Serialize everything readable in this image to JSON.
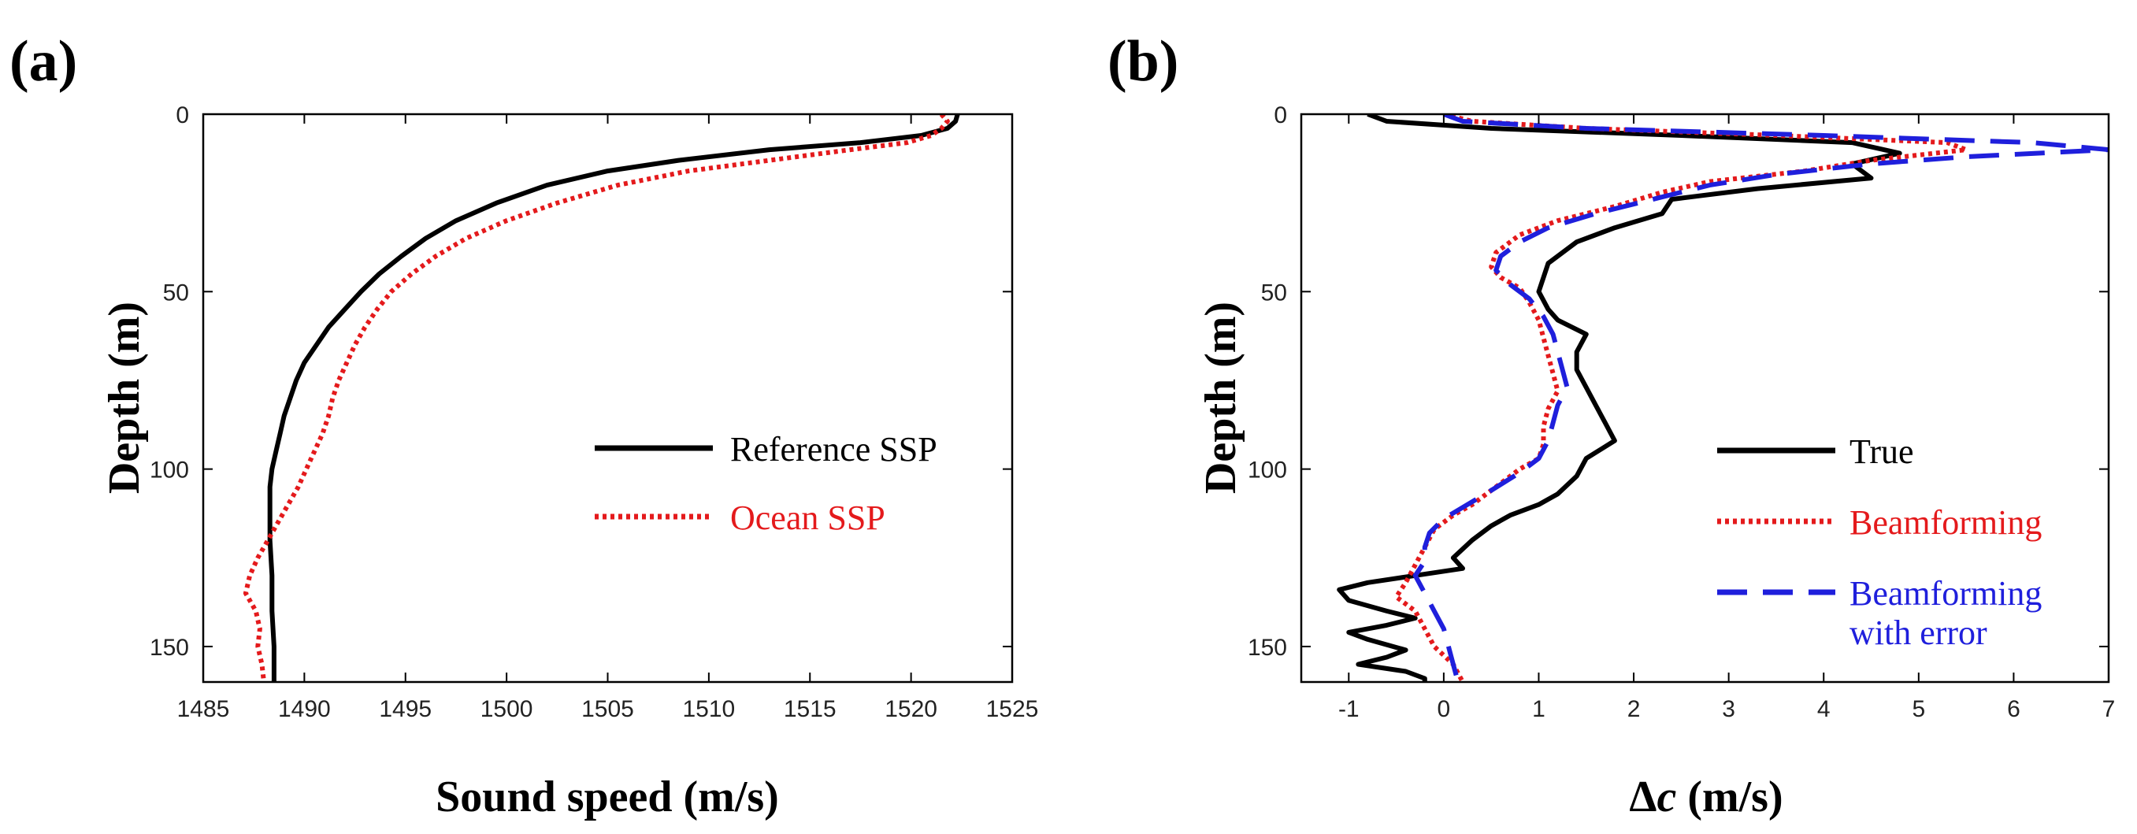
{
  "chart_data": [
    {
      "panel": "(a)",
      "type": "line",
      "xlabel": "Sound speed (m/s)",
      "ylabel": "Depth (m)",
      "xlim": [
        1485,
        1525
      ],
      "ylim": [
        0,
        160
      ],
      "y_inverted": true,
      "xticks": [
        "1485",
        "1490",
        "1495",
        "1500",
        "1505",
        "1510",
        "1515",
        "1520",
        "1525"
      ],
      "yticks": [
        "0",
        "50",
        "100",
        "150"
      ],
      "legend_position": "center-right",
      "series": [
        {
          "name": "Reference SSP",
          "color": "#000000",
          "style": "solid",
          "points": [
            [
              1522.3,
              0
            ],
            [
              1522.2,
              2
            ],
            [
              1521.8,
              4
            ],
            [
              1520.5,
              6
            ],
            [
              1517.5,
              8
            ],
            [
              1513,
              10
            ],
            [
              1508.5,
              13
            ],
            [
              1505,
              16
            ],
            [
              1502,
              20
            ],
            [
              1499.5,
              25
            ],
            [
              1497.5,
              30
            ],
            [
              1496,
              35
            ],
            [
              1494.8,
              40
            ],
            [
              1493.7,
              45
            ],
            [
              1492.8,
              50
            ],
            [
              1492,
              55
            ],
            [
              1491.2,
              60
            ],
            [
              1490.6,
              65
            ],
            [
              1490,
              70
            ],
            [
              1489.6,
              75
            ],
            [
              1489.3,
              80
            ],
            [
              1489,
              85
            ],
            [
              1488.8,
              90
            ],
            [
              1488.6,
              95
            ],
            [
              1488.4,
              100
            ],
            [
              1488.3,
              105
            ],
            [
              1488.3,
              110
            ],
            [
              1488.3,
              120
            ],
            [
              1488.4,
              130
            ],
            [
              1488.4,
              140
            ],
            [
              1488.5,
              150
            ],
            [
              1488.5,
              160
            ]
          ]
        },
        {
          "name": "Ocean SSP",
          "color": "#e41a1c",
          "style": "dotted",
          "points": [
            [
              1521.5,
              0
            ],
            [
              1521.8,
              2
            ],
            [
              1521.5,
              4
            ],
            [
              1521,
              6
            ],
            [
              1519.8,
              8
            ],
            [
              1517,
              10
            ],
            [
              1513,
              13
            ],
            [
              1509,
              16
            ],
            [
              1505.5,
              20
            ],
            [
              1502.5,
              25
            ],
            [
              1500,
              30
            ],
            [
              1498,
              35
            ],
            [
              1496.5,
              40
            ],
            [
              1495.3,
              45
            ],
            [
              1494.3,
              50
            ],
            [
              1493.6,
              55
            ],
            [
              1493,
              60
            ],
            [
              1492.5,
              65
            ],
            [
              1492.1,
              70
            ],
            [
              1491.7,
              75
            ],
            [
              1491.4,
              80
            ],
            [
              1491.2,
              85
            ],
            [
              1490.9,
              90
            ],
            [
              1490.5,
              95
            ],
            [
              1490.1,
              100
            ],
            [
              1489.7,
              105
            ],
            [
              1489.2,
              110
            ],
            [
              1488.7,
              115
            ],
            [
              1488.2,
              120
            ],
            [
              1487.7,
              125
            ],
            [
              1487.3,
              130
            ],
            [
              1487.1,
              135
            ],
            [
              1487.6,
              140
            ],
            [
              1487.8,
              145
            ],
            [
              1487.7,
              150
            ],
            [
              1487.9,
              155
            ],
            [
              1488,
              160
            ]
          ]
        }
      ]
    },
    {
      "panel": "(b)",
      "type": "line",
      "xlabel_symbol": "Δ",
      "xlabel_var": "c",
      "xlabel_units": " (m/s)",
      "ylabel": "Depth (m)",
      "xlim": [
        -1.5,
        7
      ],
      "ylim": [
        0,
        160
      ],
      "y_inverted": true,
      "xticks": [
        "-1",
        "0",
        "1",
        "2",
        "3",
        "4",
        "5",
        "6",
        "7"
      ],
      "xtick_values": [
        -1,
        0,
        1,
        2,
        3,
        4,
        5,
        6,
        7
      ],
      "yticks": [
        "0",
        "50",
        "100",
        "150"
      ],
      "legend_position": "lower-right",
      "series": [
        {
          "name": "True",
          "color": "#000000",
          "style": "solid",
          "points": [
            [
              -0.8,
              0
            ],
            [
              -0.6,
              2
            ],
            [
              0.5,
              4
            ],
            [
              2.5,
              6
            ],
            [
              4.3,
              8
            ],
            [
              4.8,
              11
            ],
            [
              4.3,
              14
            ],
            [
              4.5,
              18
            ],
            [
              3.3,
              21
            ],
            [
              2.4,
              24
            ],
            [
              2.3,
              28
            ],
            [
              1.8,
              32
            ],
            [
              1.4,
              36
            ],
            [
              1.1,
              42
            ],
            [
              1,
              50
            ],
            [
              1.1,
              55
            ],
            [
              1.2,
              58
            ],
            [
              1.5,
              62
            ],
            [
              1.4,
              67
            ],
            [
              1.4,
              72
            ],
            [
              1.5,
              77
            ],
            [
              1.6,
              82
            ],
            [
              1.7,
              87
            ],
            [
              1.8,
              92
            ],
            [
              1.5,
              97
            ],
            [
              1.4,
              102
            ],
            [
              1.2,
              107
            ],
            [
              1,
              110
            ],
            [
              0.7,
              113
            ],
            [
              0.5,
              116
            ],
            [
              0.3,
              120
            ],
            [
              0.1,
              125
            ],
            [
              0.2,
              128
            ],
            [
              -0.3,
              130
            ],
            [
              -0.8,
              132
            ],
            [
              -1.1,
              134
            ],
            [
              -1.0,
              137
            ],
            [
              -0.6,
              140
            ],
            [
              -0.3,
              142
            ],
            [
              -0.6,
              144
            ],
            [
              -1.0,
              146
            ],
            [
              -0.8,
              148
            ],
            [
              -0.4,
              151
            ],
            [
              -0.6,
              153
            ],
            [
              -0.9,
              155
            ],
            [
              -0.4,
              157
            ],
            [
              -0.2,
              159
            ],
            [
              -0.2,
              160
            ]
          ]
        },
        {
          "name": "Beamforming",
          "color": "#e41a1c",
          "style": "dotted",
          "points": [
            [
              0,
              0
            ],
            [
              0.3,
              2
            ],
            [
              1.5,
              4
            ],
            [
              3.5,
              6
            ],
            [
              5.3,
              8
            ],
            [
              5.5,
              10
            ],
            [
              4.5,
              13
            ],
            [
              3.8,
              16
            ],
            [
              2.8,
              19
            ],
            [
              2.3,
              22
            ],
            [
              1.8,
              26
            ],
            [
              1.2,
              30
            ],
            [
              0.8,
              34
            ],
            [
              0.55,
              39
            ],
            [
              0.5,
              43
            ],
            [
              0.6,
              46
            ],
            [
              0.8,
              49
            ],
            [
              0.9,
              53
            ],
            [
              1,
              58
            ],
            [
              1.05,
              63
            ],
            [
              1.1,
              68
            ],
            [
              1.15,
              73
            ],
            [
              1.2,
              78
            ],
            [
              1.1,
              83
            ],
            [
              1.05,
              88
            ],
            [
              1.05,
              93
            ],
            [
              1,
              97
            ],
            [
              0.8,
              100
            ],
            [
              0.5,
              106
            ],
            [
              0.3,
              110
            ],
            [
              0.1,
              113
            ],
            [
              -0.1,
              117
            ],
            [
              -0.2,
              122
            ],
            [
              -0.3,
              127
            ],
            [
              -0.4,
              132
            ],
            [
              -0.5,
              136
            ],
            [
              -0.3,
              140
            ],
            [
              -0.2,
              145
            ],
            [
              -0.1,
              150
            ],
            [
              0.1,
              155
            ],
            [
              0.2,
              160
            ]
          ]
        },
        {
          "name": "Beamforming with error",
          "legend_line1": "Beamforming",
          "legend_line2": "with error",
          "color": "#1f1fdc",
          "style": "dashed",
          "points": [
            [
              0,
              0
            ],
            [
              0.2,
              2
            ],
            [
              1.5,
              4
            ],
            [
              4,
              6
            ],
            [
              6.2,
              8
            ],
            [
              7,
              10
            ],
            [
              5.5,
              12
            ],
            [
              4.5,
              14
            ],
            [
              3.5,
              17
            ],
            [
              2.8,
              20
            ],
            [
              2.2,
              24
            ],
            [
              1.6,
              28
            ],
            [
              1.1,
              32
            ],
            [
              0.8,
              36
            ],
            [
              0.6,
              40
            ],
            [
              0.55,
              44
            ],
            [
              0.7,
              48
            ],
            [
              0.9,
              52
            ],
            [
              1.05,
              57
            ],
            [
              1.15,
              62
            ],
            [
              1.2,
              67
            ],
            [
              1.25,
              72
            ],
            [
              1.3,
              77
            ],
            [
              1.2,
              82
            ],
            [
              1.15,
              87
            ],
            [
              1.1,
              92
            ],
            [
              1.0,
              97
            ],
            [
              0.8,
              101
            ],
            [
              0.5,
              106
            ],
            [
              0.25,
              110
            ],
            [
              0,
              114
            ],
            [
              -0.15,
              118
            ],
            [
              -0.2,
              122
            ],
            [
              -0.2,
              126
            ],
            [
              -0.3,
              130
            ],
            [
              -0.2,
              135
            ],
            [
              -0.1,
              140
            ],
            [
              0,
              145
            ],
            [
              0.05,
              150
            ],
            [
              0.1,
              155
            ],
            [
              0.15,
              160
            ]
          ]
        }
      ]
    }
  ]
}
